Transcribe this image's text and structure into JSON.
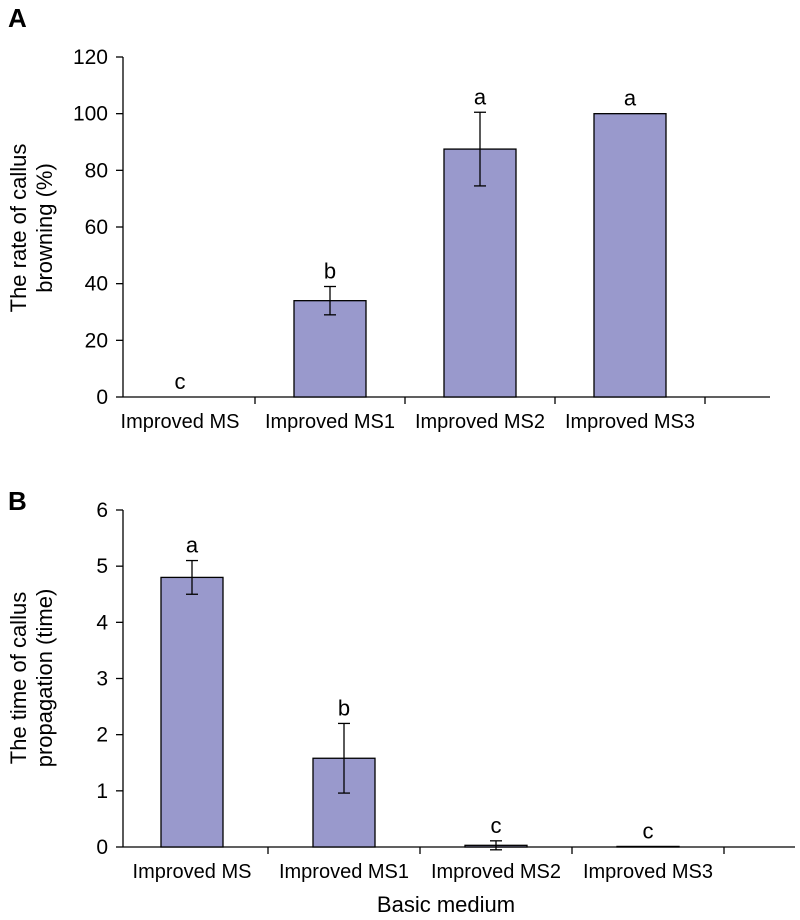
{
  "chart_data": [
    {
      "panel": "A",
      "type": "bar",
      "categories": [
        "Improved MS",
        "Improved MS1",
        "Improved MS2",
        "Improved MS3"
      ],
      "values": [
        0,
        34,
        87.5,
        100
      ],
      "errors": [
        0,
        5,
        13,
        0
      ],
      "significance": [
        "c",
        "b",
        "a",
        "a"
      ],
      "ylabel_lines": [
        "The rate of callus",
        "browning (%)"
      ],
      "xlabel": "",
      "ylim": [
        0,
        120
      ],
      "yticks": [
        0,
        20,
        40,
        60,
        80,
        100,
        120
      ],
      "bar_color": "#9999cc",
      "grid": false
    },
    {
      "panel": "B",
      "type": "bar",
      "categories": [
        "Improved MS",
        "Improved MS1",
        "Improved MS2",
        "Improved MS3"
      ],
      "values": [
        4.8,
        1.58,
        0.03,
        0.01
      ],
      "errors": [
        0.3,
        0.62,
        0.08,
        0
      ],
      "significance": [
        "a",
        "b",
        "c",
        "c"
      ],
      "ylabel_lines": [
        "The time of callus",
        "propagation (time)"
      ],
      "xlabel": "Basic medium",
      "ylim": [
        0,
        6
      ],
      "yticks": [
        0,
        1,
        2,
        3,
        4,
        5,
        6
      ],
      "bar_color": "#9999cc",
      "grid": false
    }
  ]
}
